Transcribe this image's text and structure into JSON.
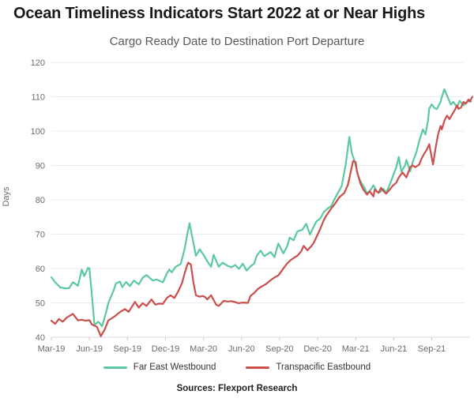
{
  "title": "Ocean Timeliness Indicators Start 2022 at or Near Highs",
  "subtitle": "Cargo Ready Date to Destination Port Departure",
  "source": "Sources: Flexport Research",
  "colors": {
    "far_east_westbound": "#5BC8A1",
    "transpacific_eastbound": "#CB4E4A",
    "grid": "#EBEBEB",
    "axis_line": "#D8D8D8",
    "tick_mark": "#C9C9C9",
    "axis_text": "#6B6B6B",
    "title_text": "#1A1A1A"
  },
  "legend": {
    "items": [
      {
        "label": "Far East Westbound"
      },
      {
        "label": "Transpacific Eastbound"
      }
    ]
  },
  "chart_data": {
    "type": "line",
    "title": "Cargo Ready Date to Destination Port Departure",
    "xlabel": "",
    "ylabel": "Days",
    "ylim": [
      40,
      120
    ],
    "yticks": [
      40,
      50,
      60,
      70,
      80,
      90,
      100,
      110,
      120
    ],
    "grid": "horizontal",
    "legend_position": "bottom",
    "x_unit": "months since Mar-2019, weekly samples",
    "xtick_labels": [
      "Mar-19",
      "Jun-19",
      "Sep-19",
      "Dec-19",
      "Mar-20",
      "Jun-20",
      "Sep-20",
      "Dec-20",
      "Mar-21",
      "Jun-21",
      "Sep-21"
    ],
    "xtick_positions": [
      0,
      3,
      6,
      9,
      12,
      15,
      18,
      21,
      24,
      27,
      30
    ],
    "series": [
      {
        "name": "Far East Westbound",
        "color": "#5BC8A1",
        "points": [
          [
            0,
            57.5
          ],
          [
            0.3,
            56
          ],
          [
            0.7,
            54.5
          ],
          [
            1.1,
            54.2
          ],
          [
            1.4,
            54.3
          ],
          [
            1.7,
            56
          ],
          [
            2.1,
            55
          ],
          [
            2.4,
            59.7
          ],
          [
            2.6,
            57.8
          ],
          [
            2.9,
            60.2
          ],
          [
            3,
            60
          ],
          [
            3.2,
            52
          ],
          [
            3.4,
            43.6
          ],
          [
            3.7,
            44.5
          ],
          [
            4,
            43.2
          ],
          [
            4.3,
            47
          ],
          [
            4.5,
            50
          ],
          [
            4.9,
            53.5
          ],
          [
            5.1,
            55.7
          ],
          [
            5.4,
            56.2
          ],
          [
            5.6,
            54.6
          ],
          [
            5.9,
            56.1
          ],
          [
            6.2,
            54.9
          ],
          [
            6.5,
            56.5
          ],
          [
            6.9,
            55.4
          ],
          [
            7.2,
            57.3
          ],
          [
            7.5,
            58.1
          ],
          [
            8,
            56.5
          ],
          [
            8.3,
            56.8
          ],
          [
            8.8,
            56
          ],
          [
            9.1,
            58.5
          ],
          [
            9.3,
            59.7
          ],
          [
            9.5,
            58.9
          ],
          [
            9.8,
            60.5
          ],
          [
            10.2,
            61.3
          ],
          [
            10.5,
            65.5
          ],
          [
            10.7,
            69.5
          ],
          [
            10.9,
            73.2
          ],
          [
            11.2,
            67.5
          ],
          [
            11.4,
            63.7
          ],
          [
            11.7,
            65.6
          ],
          [
            12,
            64
          ],
          [
            12.3,
            62.1
          ],
          [
            12.6,
            60.5
          ],
          [
            12.8,
            64
          ],
          [
            13.2,
            60.5
          ],
          [
            13.5,
            61.7
          ],
          [
            13.9,
            60.8
          ],
          [
            14.2,
            60.4
          ],
          [
            14.5,
            61
          ],
          [
            14.8,
            59.9
          ],
          [
            15.1,
            61.4
          ],
          [
            15.4,
            59.4
          ],
          [
            15.7,
            60.6
          ],
          [
            16,
            61.5
          ],
          [
            16.2,
            63.7
          ],
          [
            16.5,
            65.2
          ],
          [
            16.8,
            63.6
          ],
          [
            17.3,
            64.8
          ],
          [
            17.6,
            63.3
          ],
          [
            17.9,
            67.3
          ],
          [
            18.3,
            64.4
          ],
          [
            18.6,
            66.5
          ],
          [
            18.8,
            69
          ],
          [
            19.1,
            68.2
          ],
          [
            19.4,
            70.8
          ],
          [
            19.8,
            71.3
          ],
          [
            20.1,
            73
          ],
          [
            20.4,
            69.9
          ],
          [
            20.6,
            71.5
          ],
          [
            20.9,
            73.7
          ],
          [
            21.2,
            74.5
          ],
          [
            21.5,
            76.5
          ],
          [
            21.8,
            77.5
          ],
          [
            22.1,
            78.3
          ],
          [
            22.3,
            80
          ],
          [
            22.6,
            82
          ],
          [
            22.9,
            84
          ],
          [
            23.2,
            90
          ],
          [
            23.5,
            98.3
          ],
          [
            23.7,
            93.5
          ],
          [
            23.9,
            91.5
          ],
          [
            24.2,
            87
          ],
          [
            24.4,
            85.2
          ],
          [
            24.7,
            83.5
          ],
          [
            24.9,
            81.8
          ],
          [
            25.2,
            83
          ],
          [
            25.4,
            84.2
          ],
          [
            25.7,
            82.3
          ],
          [
            25.9,
            82.2
          ],
          [
            26.2,
            83.2
          ],
          [
            26.4,
            82
          ],
          [
            26.7,
            84.5
          ],
          [
            26.9,
            86.5
          ],
          [
            27.2,
            89.5
          ],
          [
            27.4,
            92.5
          ],
          [
            27.6,
            88.2
          ],
          [
            27.9,
            90
          ],
          [
            28,
            91.6
          ],
          [
            28.3,
            88.3
          ],
          [
            28.5,
            91
          ],
          [
            28.8,
            94
          ],
          [
            29,
            97
          ],
          [
            29.3,
            100.5
          ],
          [
            29.5,
            99
          ],
          [
            29.7,
            103
          ],
          [
            29.8,
            106.5
          ],
          [
            30,
            107.8
          ],
          [
            30.2,
            106.8
          ],
          [
            30.4,
            106.4
          ],
          [
            30.7,
            108.5
          ],
          [
            30.8,
            110
          ],
          [
            31,
            112.2
          ],
          [
            31.3,
            109.5
          ],
          [
            31.5,
            107.7
          ],
          [
            31.7,
            108.5
          ],
          [
            32,
            107
          ],
          [
            32.2,
            108.8
          ],
          [
            32.5,
            107.5
          ],
          [
            32.7,
            108.2
          ],
          [
            33,
            109
          ],
          [
            33.1,
            108.6
          ]
        ]
      },
      {
        "name": "Transpacific Eastbound",
        "color": "#CB4E4A",
        "points": [
          [
            0,
            44.8
          ],
          [
            0.3,
            43.9
          ],
          [
            0.6,
            45.3
          ],
          [
            0.9,
            44.5
          ],
          [
            1.2,
            45.7
          ],
          [
            1.7,
            46.8
          ],
          [
            2.1,
            44.9
          ],
          [
            2.4,
            45.1
          ],
          [
            2.7,
            44.8
          ],
          [
            3,
            45
          ],
          [
            3.2,
            43.7
          ],
          [
            3.6,
            43
          ],
          [
            3.9,
            40.3
          ],
          [
            4.2,
            42.2
          ],
          [
            4.5,
            44.9
          ],
          [
            5,
            46.1
          ],
          [
            5.4,
            47.3
          ],
          [
            5.8,
            48.2
          ],
          [
            6.1,
            47.4
          ],
          [
            6.6,
            50.3
          ],
          [
            6.9,
            48.6
          ],
          [
            7.2,
            49.9
          ],
          [
            7.5,
            49.1
          ],
          [
            7.9,
            51
          ],
          [
            8.2,
            49.5
          ],
          [
            8.5,
            49.8
          ],
          [
            8.8,
            49.7
          ],
          [
            9.1,
            51.4
          ],
          [
            9.4,
            52.2
          ],
          [
            9.7,
            51.4
          ],
          [
            10,
            53.3
          ],
          [
            10.3,
            55.7
          ],
          [
            10.5,
            58.4
          ],
          [
            10.7,
            60.8
          ],
          [
            10.8,
            61.7
          ],
          [
            11,
            61.2
          ],
          [
            11.2,
            56
          ],
          [
            11.4,
            52.2
          ],
          [
            11.7,
            51.8
          ],
          [
            11.9,
            52
          ],
          [
            12.1,
            51.8
          ],
          [
            12.3,
            51
          ],
          [
            12.6,
            52.2
          ],
          [
            13,
            49.5
          ],
          [
            13.2,
            49.1
          ],
          [
            13.6,
            50.6
          ],
          [
            13.9,
            50.4
          ],
          [
            14.2,
            50.5
          ],
          [
            14.5,
            50.2
          ],
          [
            14.8,
            49.9
          ],
          [
            15.1,
            50.1
          ],
          [
            15.5,
            50
          ],
          [
            15.7,
            52
          ],
          [
            16,
            52.9
          ],
          [
            16.3,
            54.1
          ],
          [
            16.6,
            54.8
          ],
          [
            16.9,
            55.4
          ],
          [
            17.1,
            56
          ],
          [
            17.4,
            56.9
          ],
          [
            17.6,
            57.4
          ],
          [
            17.9,
            58
          ],
          [
            18.2,
            59.5
          ],
          [
            18.6,
            61.5
          ],
          [
            18.9,
            62.5
          ],
          [
            19.2,
            63.3
          ],
          [
            19.4,
            63.7
          ],
          [
            19.7,
            65
          ],
          [
            19.9,
            66.6
          ],
          [
            20.2,
            65.3
          ],
          [
            20.5,
            66.5
          ],
          [
            20.7,
            67.5
          ],
          [
            21,
            69.9
          ],
          [
            21.2,
            71.5
          ],
          [
            21.5,
            74.2
          ],
          [
            21.7,
            75.5
          ],
          [
            22.1,
            77.6
          ],
          [
            22.4,
            79
          ],
          [
            22.7,
            80.7
          ],
          [
            23.1,
            82
          ],
          [
            23.4,
            84.5
          ],
          [
            23.6,
            88
          ],
          [
            23.8,
            91.3
          ],
          [
            24,
            91
          ],
          [
            24.1,
            88.3
          ],
          [
            24.4,
            84.5
          ],
          [
            24.6,
            83
          ],
          [
            24.9,
            81.5
          ],
          [
            25.1,
            82.5
          ],
          [
            25.4,
            81
          ],
          [
            25.5,
            83
          ],
          [
            25.8,
            82
          ],
          [
            26,
            83.5
          ],
          [
            26.2,
            82.5
          ],
          [
            26.4,
            81.8
          ],
          [
            26.7,
            83
          ],
          [
            26.9,
            84
          ],
          [
            27.2,
            85
          ],
          [
            27.4,
            86.5
          ],
          [
            27.7,
            88
          ],
          [
            27.9,
            87
          ],
          [
            28,
            86.5
          ],
          [
            28.2,
            88.5
          ],
          [
            28.3,
            89.5
          ],
          [
            28.5,
            90
          ],
          [
            28.7,
            89.5
          ],
          [
            29,
            90.2
          ],
          [
            29.2,
            92
          ],
          [
            29.4,
            93.4
          ],
          [
            29.6,
            94.5
          ],
          [
            29.8,
            96.2
          ],
          [
            30.1,
            90.3
          ],
          [
            30.3,
            95
          ],
          [
            30.5,
            99
          ],
          [
            30.7,
            101.5
          ],
          [
            30.8,
            100.5
          ],
          [
            31,
            103
          ],
          [
            31.2,
            104.5
          ],
          [
            31.4,
            103.5
          ],
          [
            31.6,
            104.8
          ],
          [
            31.8,
            106
          ],
          [
            32,
            107.5
          ],
          [
            32.1,
            106.5
          ],
          [
            32.3,
            106.8
          ],
          [
            32.5,
            108.5
          ],
          [
            32.7,
            108
          ],
          [
            32.9,
            109.2
          ],
          [
            33,
            108.6
          ],
          [
            33.2,
            110
          ]
        ]
      }
    ]
  }
}
